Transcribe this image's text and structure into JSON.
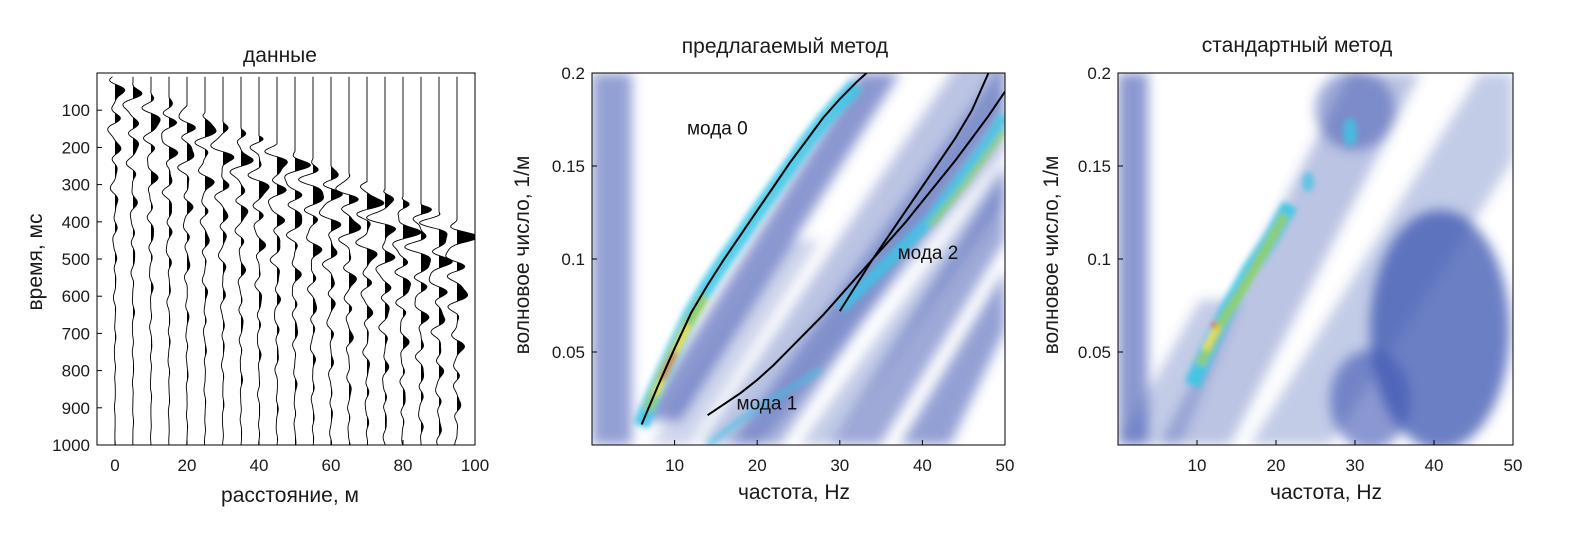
{
  "chart_data": [
    {
      "type": "seismogram",
      "title": "данные",
      "xlabel": "расстояние, м",
      "ylabel": "время, мс",
      "xlim": [
        -5,
        100
      ],
      "ylim": [
        0,
        1000
      ],
      "y_reversed": true,
      "xticks": [
        0,
        20,
        40,
        60,
        80,
        100
      ],
      "yticks": [
        100,
        200,
        300,
        400,
        500,
        600,
        700,
        800,
        900,
        1000
      ],
      "traces_offsets_m": [
        0,
        5,
        10,
        15,
        20,
        25,
        30,
        35,
        40,
        45,
        50,
        55,
        60,
        65,
        70,
        75,
        80,
        85,
        90,
        95
      ],
      "first_arrival": {
        "offset_m": [
          0,
          95
        ],
        "time_ms": [
          30,
          420
        ]
      },
      "fill": "positive lobes black",
      "grid": false
    },
    {
      "type": "heatmap",
      "title": "предлагаемый метод",
      "xlabel": "частота, Hz",
      "ylabel": "волновое число, 1/м",
      "xlim": [
        0,
        50
      ],
      "ylim": [
        0,
        0.2
      ],
      "xticks": [
        10,
        20,
        30,
        40,
        50
      ],
      "yticks": [
        0.05,
        0.1,
        0.15,
        0.2
      ],
      "colormap": "white-blue-cyan-green-yellow-red",
      "curves": [
        {
          "x": [
            6,
            8,
            10,
            12,
            14,
            16,
            18,
            20,
            22,
            24,
            26,
            28,
            30,
            32,
            34
          ],
          "y": [
            0.011,
            0.032,
            0.052,
            0.071,
            0.086,
            0.1,
            0.113,
            0.126,
            0.139,
            0.152,
            0.164,
            0.176,
            0.186,
            0.195,
            0.203
          ]
        },
        {
          "x": [
            14,
            16,
            18,
            20,
            22,
            24,
            26,
            28,
            30,
            32,
            34,
            36,
            38,
            40,
            42,
            44,
            46,
            48,
            50
          ],
          "y": [
            0.016,
            0.022,
            0.028,
            0.035,
            0.043,
            0.052,
            0.061,
            0.07,
            0.08,
            0.09,
            0.1,
            0.11,
            0.12,
            0.131,
            0.142,
            0.153,
            0.165,
            0.177,
            0.19
          ]
        },
        {
          "x": [
            30,
            32,
            34,
            36,
            38,
            40,
            42,
            44,
            46,
            48
          ],
          "y": [
            0.072,
            0.086,
            0.1,
            0.113,
            0.126,
            0.139,
            0.152,
            0.165,
            0.18,
            0.2
          ]
        }
      ],
      "annotations": [
        {
          "text": "мода 0",
          "x": 11.5,
          "y": 0.167
        },
        {
          "text": "мода 1",
          "x": 17.5,
          "y": 0.019
        },
        {
          "text": "мода 2",
          "x": 37.0,
          "y": 0.1
        }
      ]
    },
    {
      "type": "heatmap",
      "title": "стандартный метод",
      "xlabel": "частота, Hz",
      "ylabel": "волновое число, 1/м",
      "xlim": [
        0,
        50
      ],
      "ylim": [
        0,
        0.2
      ],
      "xticks": [
        10,
        20,
        30,
        40,
        50
      ],
      "yticks": [
        0.05,
        0.1,
        0.15,
        0.2
      ],
      "colormap": "white-blue-cyan-green-yellow-red"
    }
  ],
  "colors": {
    "ink": "#000000",
    "white": "#ffffff",
    "blue": "#3b54b0",
    "cyan": "#3bc5e6",
    "green": "#8fcf6b",
    "yellow": "#f0e233",
    "red": "#d62a1a"
  }
}
